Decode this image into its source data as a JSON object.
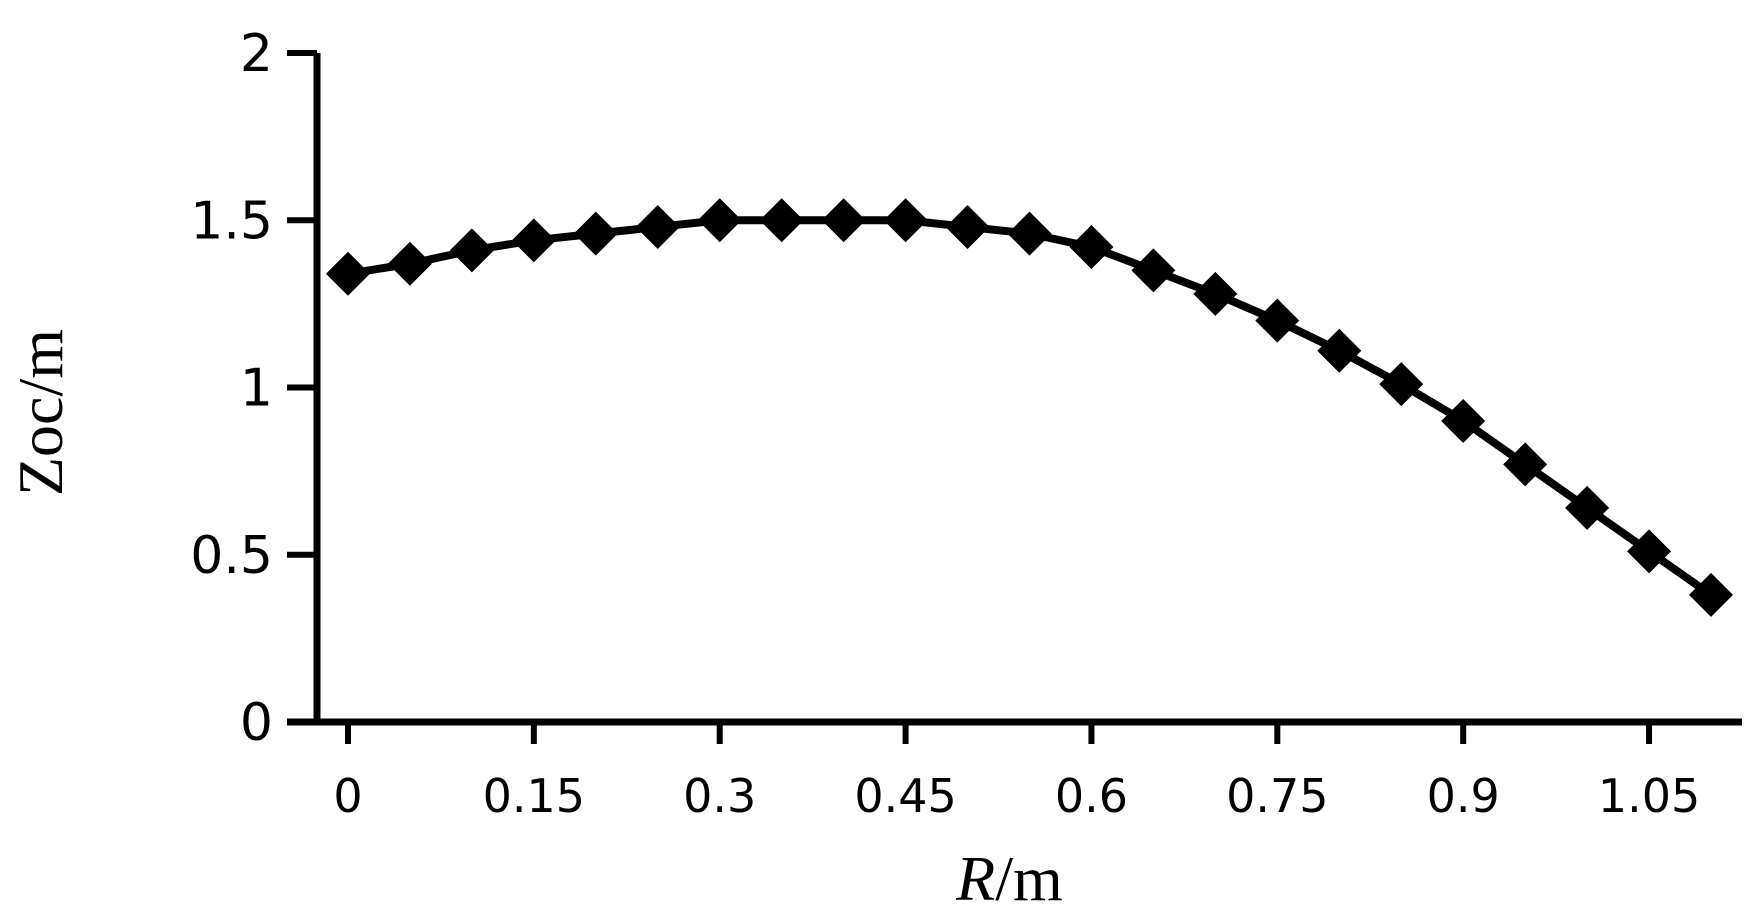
{
  "chart_data": {
    "type": "line",
    "x_tick_labels": [
      "0",
      "0.15",
      "0.3",
      "0.45",
      "0.6",
      "0.75",
      "0.9",
      "1.05"
    ],
    "y_tick_labels": [
      "0",
      "0.5",
      "1",
      "1.5",
      "2"
    ],
    "xlabel_var": "R",
    "xlabel_unit": "/m",
    "ylabel": "Zoc/m",
    "xlim": [
      -0.025,
      1.125
    ],
    "ylim": [
      0,
      2
    ],
    "x_tick_values": [
      0,
      0.15,
      0.3,
      0.45,
      0.6,
      0.75,
      0.9,
      1.05
    ],
    "y_tick_values": [
      0,
      0.5,
      1,
      1.5,
      2
    ],
    "grid": false,
    "series": [
      {
        "marker": "diamond",
        "color": "#000000",
        "x": [
          0,
          0.05,
          0.1,
          0.15,
          0.2,
          0.25,
          0.3,
          0.35,
          0.4,
          0.45,
          0.5,
          0.55,
          0.6,
          0.65,
          0.7,
          0.75,
          0.8,
          0.85,
          0.9,
          0.95,
          1.0,
          1.05,
          1.1
        ],
        "values": [
          1.34,
          1.37,
          1.41,
          1.44,
          1.46,
          1.48,
          1.5,
          1.5,
          1.5,
          1.5,
          1.48,
          1.46,
          1.42,
          1.35,
          1.28,
          1.2,
          1.11,
          1.01,
          0.9,
          0.77,
          0.64,
          0.51,
          0.38
        ]
      }
    ]
  }
}
